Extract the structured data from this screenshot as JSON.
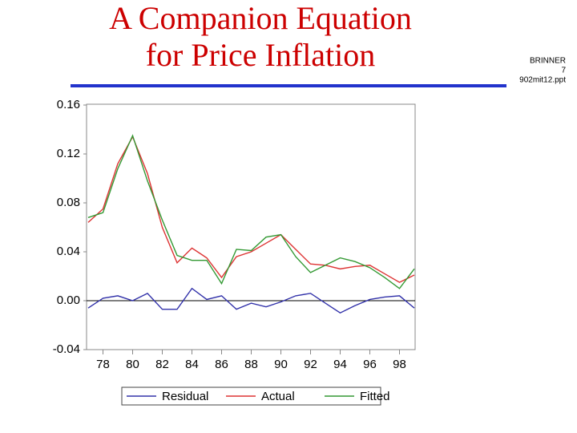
{
  "slide": {
    "title_lines": [
      "A Companion Equation",
      "for Price Inflation"
    ],
    "notes": [
      "BRINNER",
      "7",
      "902mit12.ppt"
    ]
  },
  "chart_data": {
    "type": "line",
    "x": [
      77,
      78,
      79,
      80,
      81,
      82,
      83,
      84,
      85,
      86,
      87,
      88,
      89,
      90,
      91,
      92,
      93,
      94,
      95,
      96,
      97,
      98,
      99
    ],
    "series": [
      {
        "name": "Residual",
        "color": "#3333aa",
        "values": [
          -0.006,
          0.002,
          0.004,
          0.0,
          0.006,
          -0.007,
          -0.007,
          0.01,
          0.001,
          0.004,
          -0.007,
          -0.002,
          -0.005,
          -0.001,
          0.004,
          0.006,
          -0.002,
          -0.01,
          -0.004,
          0.001,
          0.003,
          0.004,
          -0.006
        ]
      },
      {
        "name": "Actual",
        "color": "#dd3333",
        "values": [
          0.064,
          0.075,
          0.112,
          0.134,
          0.104,
          0.06,
          0.031,
          0.043,
          0.035,
          0.019,
          0.036,
          0.04,
          0.047,
          0.054,
          0.042,
          0.03,
          0.029,
          0.026,
          0.028,
          0.029,
          0.022,
          0.015,
          0.021
        ]
      },
      {
        "name": "Fitted",
        "color": "#339933",
        "values": [
          0.068,
          0.072,
          0.108,
          0.135,
          0.098,
          0.066,
          0.037,
          0.033,
          0.033,
          0.014,
          0.042,
          0.041,
          0.052,
          0.054,
          0.036,
          0.023,
          0.029,
          0.035,
          0.032,
          0.027,
          0.019,
          0.01,
          0.026
        ]
      }
    ],
    "xlim": [
      77,
      99
    ],
    "xticks": [
      78,
      80,
      82,
      84,
      86,
      88,
      90,
      92,
      94,
      96,
      98
    ],
    "ylim": [
      -0.04,
      0.16
    ],
    "yticks": [
      0.16,
      0.12,
      0.08,
      0.04,
      {
        "value": 0,
        "label": "0.00"
      },
      -0.04
    ],
    "reference_line": 0,
    "legend": "bottom"
  }
}
